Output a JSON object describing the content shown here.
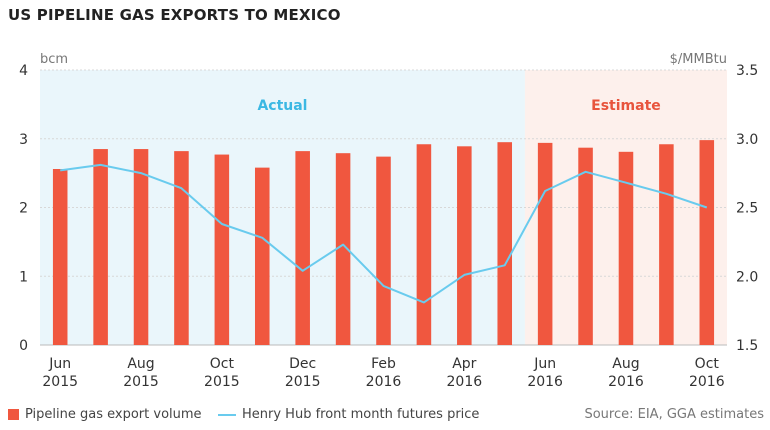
{
  "title": "US PIPELINE GAS EXPORTS TO MEXICO",
  "source": "Source: EIA, GGA estimates",
  "regions": {
    "actual_label": "Actual",
    "estimate_label": "Estimate"
  },
  "colors": {
    "bar": "#f0573f",
    "line": "#69cbee",
    "actual_bg": "#eaf6fb",
    "estimate_bg": "#fdf0ec",
    "actual_text": "#3bb8e3",
    "estimate_text": "#e8543d",
    "grid": "#d8d8d8"
  },
  "chart_data": {
    "type": "bar",
    "title": "US PIPELINE GAS EXPORTS TO MEXICO",
    "ylabel": "bcm",
    "y2label": "$/MMBtu",
    "ylim": [
      0,
      4
    ],
    "y2lim": [
      1.5,
      3.5
    ],
    "yticks": [
      "0",
      "1",
      "2",
      "3",
      "4"
    ],
    "y2ticks": [
      "1.5",
      "2.0",
      "2.5",
      "3.0",
      "3.5"
    ],
    "x_tick_labels": [
      {
        "month": "Jun",
        "year": "2015"
      },
      {
        "month": "Aug",
        "year": "2015"
      },
      {
        "month": "Oct",
        "year": "2015"
      },
      {
        "month": "Dec",
        "year": "2015"
      },
      {
        "month": "Feb",
        "year": "2016"
      },
      {
        "month": "Apr",
        "year": "2016"
      },
      {
        "month": "Jun",
        "year": "2016"
      },
      {
        "month": "Aug",
        "year": "2016"
      },
      {
        "month": "Oct",
        "year": "2016"
      }
    ],
    "categories": [
      "Jun 2015",
      "Jul 2015",
      "Aug 2015",
      "Sep 2015",
      "Oct 2015",
      "Nov 2015",
      "Dec 2015",
      "Jan 2016",
      "Feb 2016",
      "Mar 2016",
      "Apr 2016",
      "May 2016",
      "Jun 2016",
      "Jul 2016",
      "Aug 2016",
      "Sep 2016",
      "Oct 2016"
    ],
    "actual_through": "May 2016",
    "grid": true,
    "legend_position": "bottom-left",
    "series": [
      {
        "name": "Pipeline gas export volume",
        "type": "bar",
        "axis": "left",
        "values": [
          2.56,
          2.85,
          2.85,
          2.82,
          2.77,
          2.58,
          2.82,
          2.79,
          2.74,
          2.92,
          2.89,
          2.95,
          2.94,
          2.87,
          2.81,
          2.92,
          2.98
        ]
      },
      {
        "name": "Henry Hub front month futures price",
        "type": "line",
        "axis": "right",
        "values": [
          2.77,
          2.81,
          2.75,
          2.64,
          2.38,
          2.28,
          2.04,
          2.23,
          1.93,
          1.81,
          2.01,
          2.08,
          2.62,
          2.76,
          2.68,
          2.6,
          2.5
        ]
      }
    ]
  }
}
